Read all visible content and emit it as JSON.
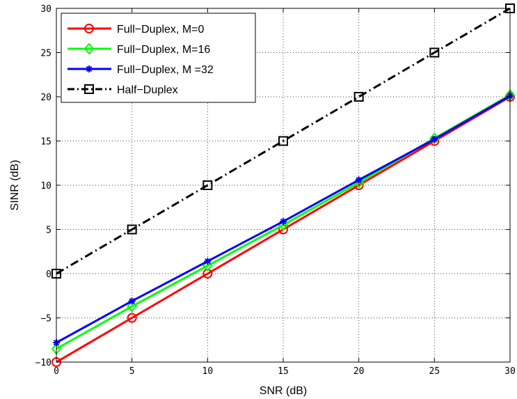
{
  "chart_data": {
    "type": "line",
    "title": "",
    "xlabel": "SNR (dB)",
    "ylabel": "SINR (dB)",
    "xlim": [
      0,
      30
    ],
    "ylim": [
      -10,
      30
    ],
    "xticks": [
      0,
      5,
      10,
      15,
      20,
      25,
      30
    ],
    "yticks": [
      -10,
      -5,
      0,
      5,
      10,
      15,
      20,
      25,
      30
    ],
    "xtick_labels": [
      "0",
      "5",
      "10",
      "15",
      "20",
      "25",
      "30"
    ],
    "ytick_labels": [
      "−10",
      "−5",
      "0",
      "5",
      "10",
      "15",
      "20",
      "25",
      "30"
    ],
    "grid": true,
    "legend_position": "top-left",
    "x": [
      0,
      5,
      10,
      15,
      20,
      25,
      30
    ],
    "series": [
      {
        "name": "Full−Duplex, M=0",
        "values": [
          -10,
          -5,
          0,
          5,
          10,
          15,
          20
        ],
        "color": "#ff0000",
        "marker": "circle",
        "dash": "solid"
      },
      {
        "name": "Full−Duplex, M=16",
        "values": [
          -8.5,
          -3.7,
          0.9,
          5.5,
          10.3,
          15.3,
          20.2
        ],
        "color": "#00ff00",
        "marker": "diamond",
        "dash": "solid"
      },
      {
        "name": "Full−Duplex, M =32",
        "values": [
          -7.8,
          -3.1,
          1.4,
          5.9,
          10.6,
          15.2,
          20.1
        ],
        "color": "#0000ff",
        "marker": "star",
        "dash": "solid"
      },
      {
        "name": "Half−Duplex",
        "values": [
          0,
          5,
          10,
          15,
          20,
          25,
          30
        ],
        "color": "#000000",
        "marker": "square",
        "dash": "dashdot"
      }
    ]
  }
}
